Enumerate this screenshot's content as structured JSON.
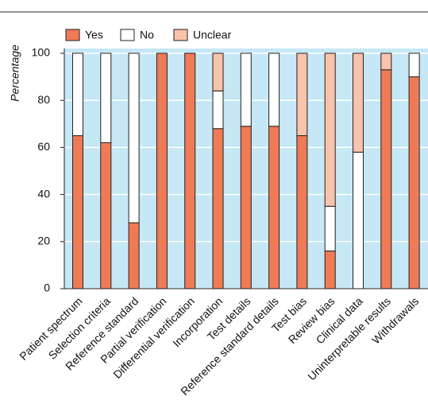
{
  "chart_data": {
    "type": "stacked_bar",
    "y_label": "Percentage",
    "categories": [
      "Patient spectrum",
      "Selection criteria",
      "Reference standard",
      "Partial verification",
      "Differential verification",
      "Incorporation",
      "Test details",
      "Reference standard details",
      "Test bias",
      "Review bias",
      "Clinical data",
      "Uninterpretable results",
      "Withdrawals"
    ],
    "series": [
      {
        "name": "Yes",
        "color": "#ef7b56",
        "values": [
          65,
          62,
          28,
          100,
          100,
          68,
          69,
          69,
          65,
          16,
          0,
          93,
          90
        ]
      },
      {
        "name": "No",
        "color": "#ffffff",
        "values": [
          35,
          38,
          72,
          0,
          0,
          16,
          31,
          31,
          0,
          19,
          58,
          0,
          10
        ]
      },
      {
        "name": "Unclear",
        "color": "#f9c2aa",
        "values": [
          0,
          0,
          0,
          0,
          0,
          16,
          0,
          0,
          35,
          65,
          42,
          7,
          0
        ]
      }
    ],
    "ylim": [
      0,
      100
    ],
    "yticks": [
      0,
      20,
      40,
      60,
      80,
      100
    ],
    "grid": true,
    "background": "#c6e7f6"
  }
}
